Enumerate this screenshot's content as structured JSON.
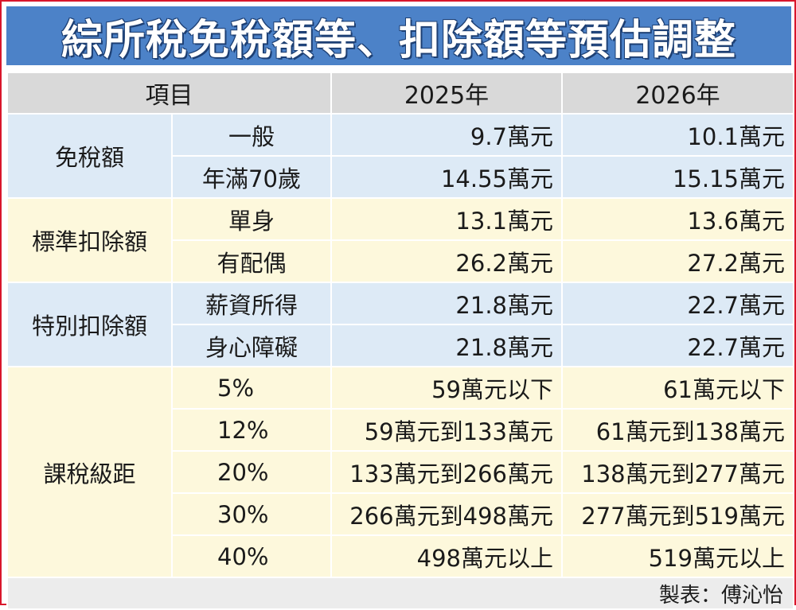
{
  "title": "綜所稅免稅額等、扣除額等預估調整",
  "headers": {
    "item": "項目",
    "y2025": "2025年",
    "y2026": "2026年"
  },
  "sections": [
    {
      "category": "免稅額",
      "rows": [
        {
          "sub": "一般",
          "y2025": "9.7萬元",
          "y2026": "10.1萬元"
        },
        {
          "sub": "年滿70歲",
          "y2025": "14.55萬元",
          "y2026": "15.15萬元"
        }
      ]
    },
    {
      "category": "標準扣除額",
      "rows": [
        {
          "sub": "單身",
          "y2025": "13.1萬元",
          "y2026": "13.6萬元"
        },
        {
          "sub": "有配偶",
          "y2025": "26.2萬元",
          "y2026": "27.2萬元"
        }
      ]
    },
    {
      "category": "特別扣除額",
      "rows": [
        {
          "sub": "薪資所得",
          "y2025": "21.8萬元",
          "y2026": "22.7萬元"
        },
        {
          "sub": "身心障礙",
          "y2025": "21.8萬元",
          "y2026": "22.7萬元"
        }
      ]
    },
    {
      "category": "課稅級距",
      "rows": [
        {
          "sub": "5%",
          "y2025": "59萬元以下",
          "y2026": "61萬元以下"
        },
        {
          "sub": "12%",
          "y2025": "59萬元到133萬元",
          "y2026": "61萬元到138萬元"
        },
        {
          "sub": "20%",
          "y2025": "133萬元到266萬元",
          "y2026": "138萬元到277萬元"
        },
        {
          "sub": "30%",
          "y2025": "266萬元到498萬元",
          "y2026": "277萬元到519萬元"
        },
        {
          "sub": "40%",
          "y2025": "498萬元以上",
          "y2026": "519萬元以上"
        }
      ]
    }
  ],
  "credit": "製表：傅沁怡",
  "colors": {
    "title_bg": "#4c82c8",
    "header_bg": "#d9d9d9",
    "blue_band": "#ddeaf6",
    "yellow_band": "#fdf8dc",
    "footer_bg": "#ececec",
    "frame_border": "#d9162b"
  }
}
